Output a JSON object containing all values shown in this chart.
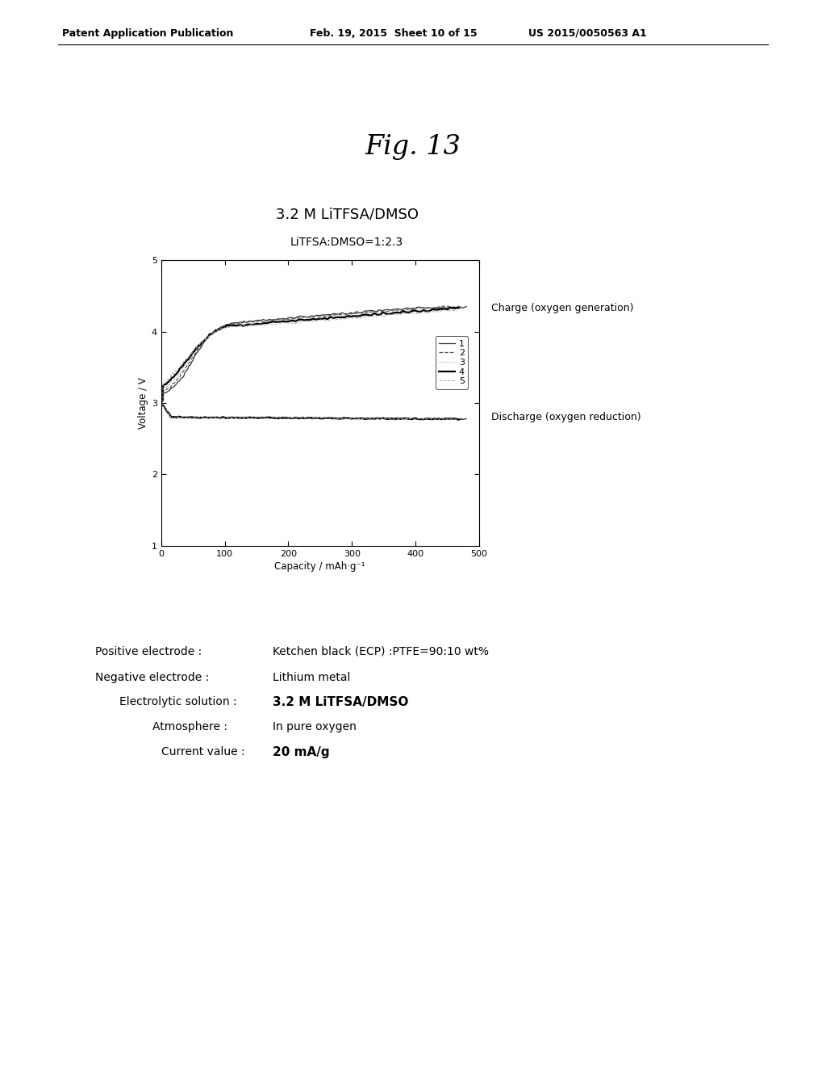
{
  "fig_label": "Fig. 13",
  "patent_header_left": "Patent Application Publication",
  "patent_header_mid": "Feb. 19, 2015  Sheet 10 of 15",
  "patent_header_right": "US 2015/0050563 A1",
  "chart_title1": "3.2 M LiTFSA/DMSO",
  "chart_title2": "LiTFSA:DMSO=1:2.3",
  "xlabel": "Capacity / mAh·g⁻¹",
  "ylabel": "Voltage / V",
  "xlim": [
    0,
    500
  ],
  "ylim": [
    1,
    5
  ],
  "xticks": [
    0,
    100,
    200,
    300,
    400,
    500
  ],
  "yticks": [
    1,
    2,
    3,
    4,
    5
  ],
  "legend_labels": [
    "1",
    "2",
    "3",
    "4",
    "5"
  ],
  "charge_label": "Charge (oxygen generation)",
  "discharge_label": "Discharge (oxygen reduction)",
  "background_color": "#ffffff",
  "line_color": "#000000",
  "pos_electrode_label": "Positive electrode :",
  "pos_electrode_value": "Ketchen black (ECP) :PTFE=90:10 wt%",
  "neg_electrode_label": "Negative electrode :",
  "neg_electrode_value": "Lithium metal",
  "electrolytic_label": "Electrolytic solution :",
  "electrolytic_value": "3.2 M LiTFSA/DMSO",
  "atmosphere_label": "Atmosphere :",
  "atmosphere_value": "In pure oxygen",
  "current_label": "Current value :",
  "current_value": "20 mA/g"
}
